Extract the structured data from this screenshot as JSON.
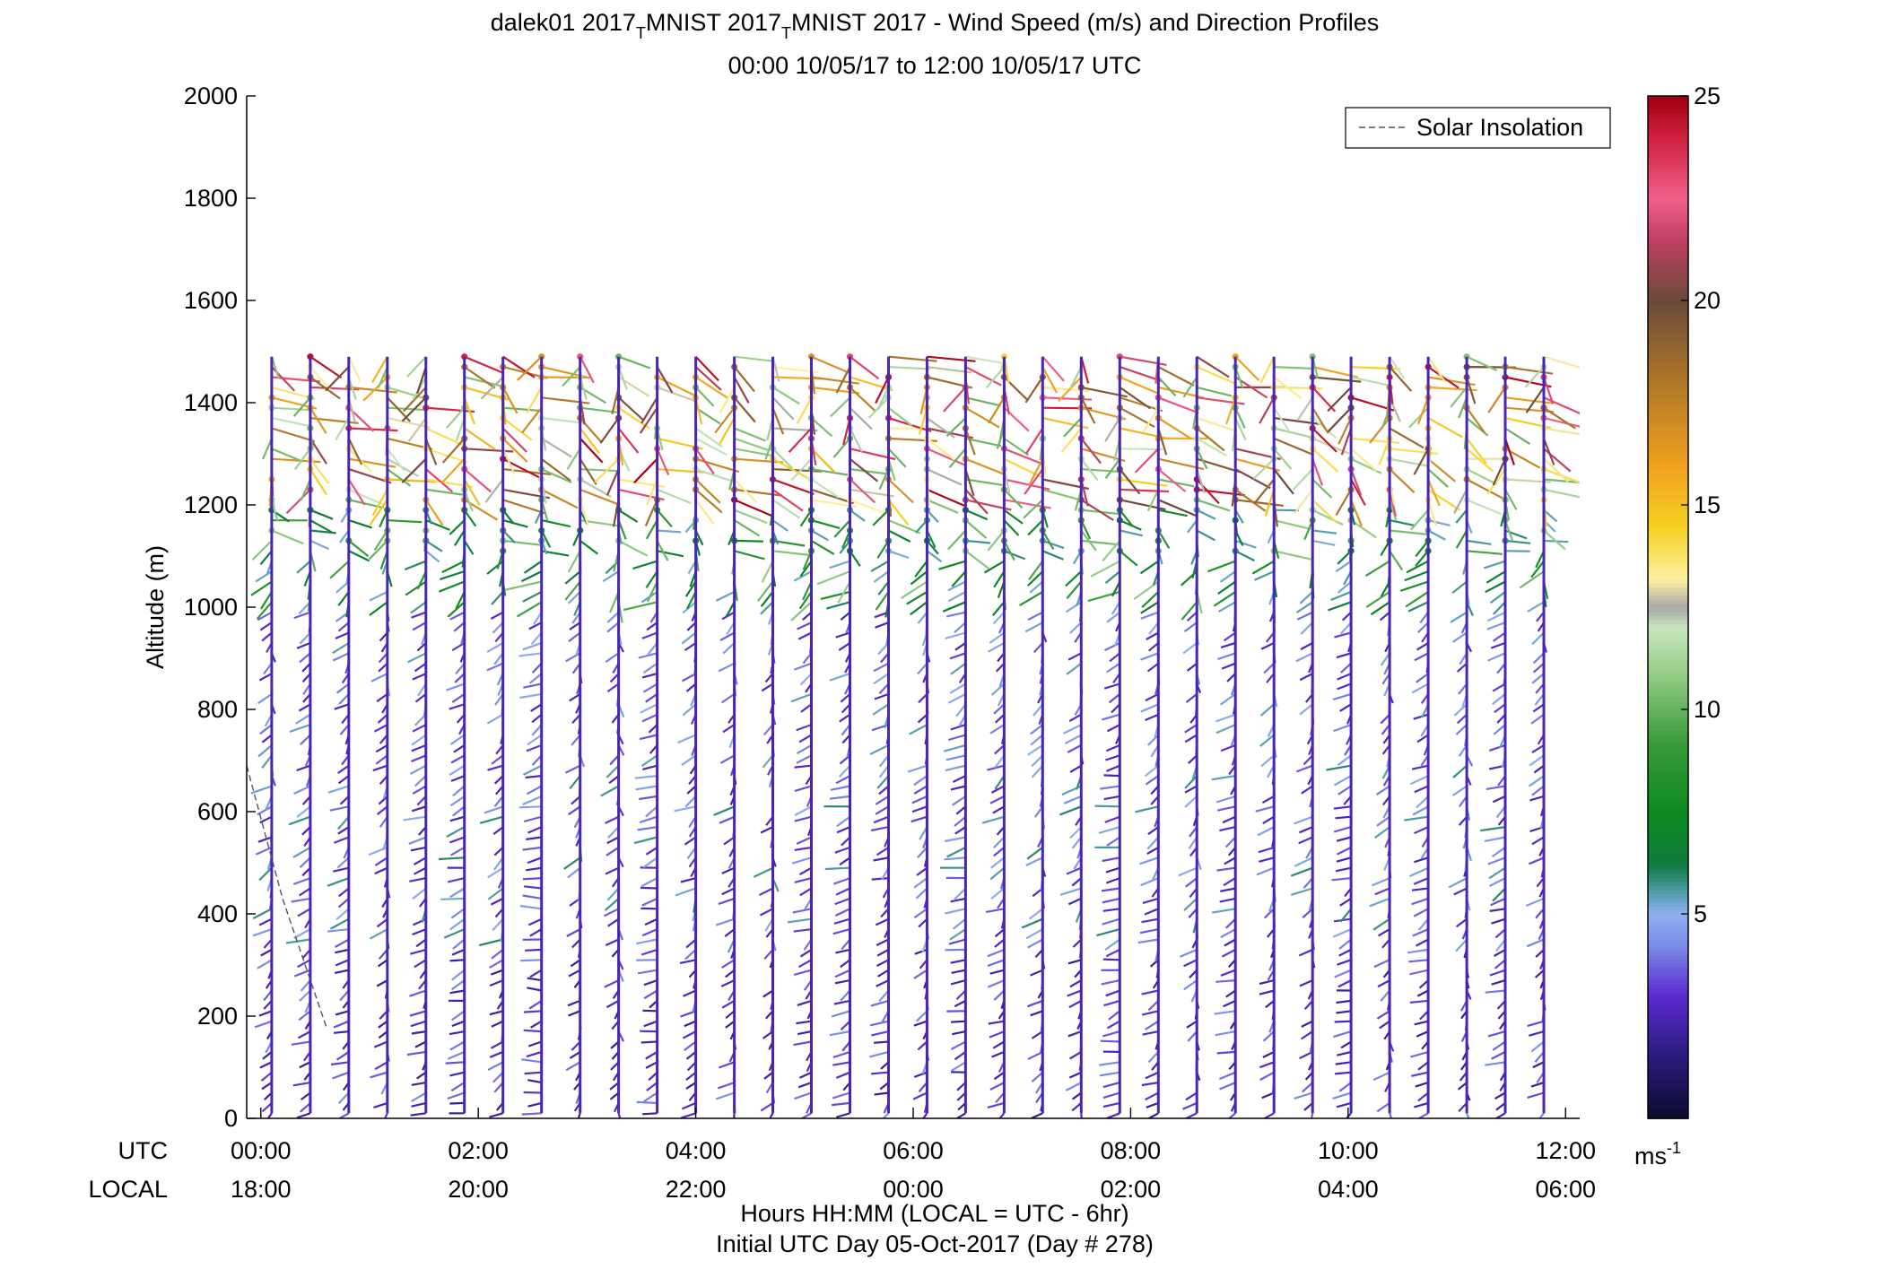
{
  "chart_data": {
    "type": "wind-barb-profile",
    "title_line1_a": "dalek01 2017",
    "title_sub1": "T",
    "title_line1_b": "MNIST 2017",
    "title_sub2": "T",
    "title_line1_c": "MNIST 2017 - Wind Speed (m/s) and Direction Profiles",
    "title_line2": "00:00 10/05/17 to 12:00 10/05/17  UTC",
    "ylabel": "Altitude (m)",
    "ylim": [
      0,
      2000
    ],
    "yticks": [
      0,
      200,
      400,
      600,
      800,
      1000,
      1200,
      1400,
      1600,
      1800,
      2000
    ],
    "xlim_hours": [
      -0.13,
      12.13
    ],
    "utc_row_label": "UTC",
    "local_row_label": "LOCAL",
    "utc_ticks": [
      "00:00",
      "02:00",
      "04:00",
      "06:00",
      "08:00",
      "10:00",
      "12:00"
    ],
    "local_ticks": [
      "18:00",
      "20:00",
      "22:00",
      "00:00",
      "02:00",
      "04:00",
      "06:00"
    ],
    "tick_hours": [
      0,
      2,
      4,
      6,
      8,
      10,
      12
    ],
    "xlabel_line1": "Hours HH:MM  (LOCAL = UTC - 6hr)",
    "xlabel_line2": "Initial UTC Day 05-Oct-2017 (Day # 278)",
    "legend": {
      "entry": "Solar Insolation",
      "style": "dashed",
      "placement": "top-right"
    },
    "colorbar": {
      "min": 0,
      "max": 25,
      "ticks": [
        5,
        10,
        15,
        20,
        25
      ],
      "unit_base": "ms",
      "unit_exp": "-1",
      "stops": [
        {
          "v": 0,
          "c": "#0b0b2e"
        },
        {
          "v": 1.5,
          "c": "#2a1a7a"
        },
        {
          "v": 3,
          "c": "#5a2ad0"
        },
        {
          "v": 4.2,
          "c": "#7a8ae6"
        },
        {
          "v": 5,
          "c": "#8fb0f0"
        },
        {
          "v": 5.6,
          "c": "#4a9aa0"
        },
        {
          "v": 6.2,
          "c": "#0f7a40"
        },
        {
          "v": 7.5,
          "c": "#0e8a20"
        },
        {
          "v": 9.2,
          "c": "#3a9a3a"
        },
        {
          "v": 11,
          "c": "#9ad08a"
        },
        {
          "v": 12,
          "c": "#c8e6c0"
        },
        {
          "v": 12.5,
          "c": "#a8a8a8"
        },
        {
          "v": 13.2,
          "c": "#fff0a0"
        },
        {
          "v": 14.5,
          "c": "#f5d020"
        },
        {
          "v": 16,
          "c": "#f0a020"
        },
        {
          "v": 18,
          "c": "#b07828"
        },
        {
          "v": 20,
          "c": "#6a4a3a"
        },
        {
          "v": 21.5,
          "c": "#c04060"
        },
        {
          "v": 22.5,
          "c": "#f06088"
        },
        {
          "v": 24,
          "c": "#d02040"
        },
        {
          "v": 25,
          "c": "#a00010"
        }
      ]
    },
    "solar_insolation_line": {
      "hours": [
        -0.13,
        0.2,
        0.6
      ],
      "altitude": [
        690,
        430,
        180
      ]
    },
    "profiles": {
      "count": 34,
      "start_hour": 0.1,
      "end_hour": 11.8,
      "bottom_m": 10,
      "top_m": 1490,
      "level_spacing_m": 20
    },
    "speed_layers_m_per_s": [
      {
        "from_m": 0,
        "to_m": 350,
        "speed_range": [
          0.5,
          4.5
        ]
      },
      {
        "from_m": 350,
        "to_m": 700,
        "speed_range": [
          0.5,
          6
        ]
      },
      {
        "from_m": 700,
        "to_m": 1000,
        "speed_range": [
          1,
          5.5
        ]
      },
      {
        "from_m": 1000,
        "to_m": 1200,
        "speed_range": [
          2,
          11
        ]
      },
      {
        "from_m": 1200,
        "to_m": 1490,
        "speed_range": [
          2,
          25
        ]
      }
    ]
  }
}
